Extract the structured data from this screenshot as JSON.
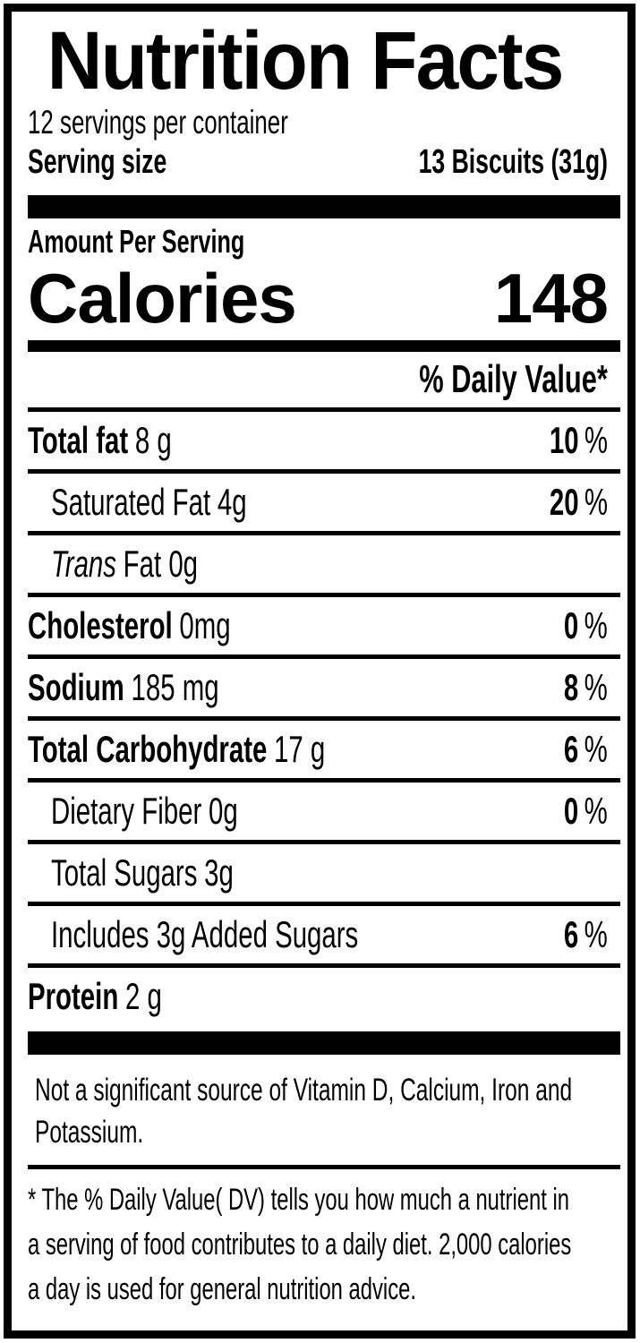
{
  "label": {
    "title": "Nutrition Facts",
    "servings_per_container": "12 servings per container",
    "serving_size": {
      "label": "Serving size",
      "value": "13 Biscuits (31g)"
    },
    "amount_per_serving": "Amount Per Serving",
    "calories": {
      "label": "Calories",
      "value": "148"
    },
    "daily_value_header": "% Daily Value*",
    "nutrients": [
      {
        "name": "Total fat",
        "amount": "8 g",
        "dv": "10",
        "pct": "%"
      },
      {
        "name": "Saturated Fat",
        "amount": "4g",
        "dv": "20",
        "pct": "%"
      },
      {
        "name": "Trans",
        "amount": "Fat 0g",
        "dv": "",
        "pct": ""
      },
      {
        "name": "Cholesterol",
        "amount": "0mg",
        "dv": "0",
        "pct": "%"
      },
      {
        "name": "Sodium",
        "amount": "185 mg",
        "dv": "8",
        "pct": "%"
      },
      {
        "name": "Total Carbohydrate",
        "amount": "17 g",
        "dv": "6",
        "pct": "%"
      },
      {
        "name": "Dietary Fiber",
        "amount": "0g",
        "dv": "0",
        "pct": "%"
      },
      {
        "name": "Total Sugars",
        "amount": "3g",
        "dv": "",
        "pct": ""
      },
      {
        "name": "Includes 3g Added Sugars",
        "amount": "",
        "dv": "6",
        "pct": "%"
      },
      {
        "name": "Protein",
        "amount": "2 g",
        "dv": "",
        "pct": ""
      }
    ],
    "not_significant_lines": [
      "Not a significant source of Vitamin D, Calcium, Iron and",
      "Potassium."
    ],
    "footnote_lines": [
      "* The % Daily Value( DV) tells you how much a nutrient in",
      "a serving of food contributes to a daily diet. 2,000 calories",
      "a day is used for general nutrition advice."
    ]
  }
}
